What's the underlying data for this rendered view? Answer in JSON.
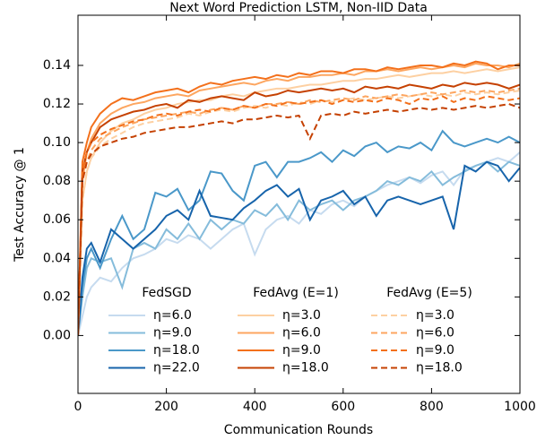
{
  "chart_data": {
    "type": "line",
    "title": "Next Word Prediction LSTM, Non-IID Data",
    "x_label": "Communication Rounds",
    "y_label": "Test Accuracy @ 1",
    "xlim": [
      0,
      1000
    ],
    "ylim": [
      -0.03,
      0.166
    ],
    "xticks": [
      0,
      200,
      400,
      600,
      800,
      1000
    ],
    "yticks": [
      {
        "value": 0,
        "label": "0.00"
      },
      0.02,
      0.04,
      0.06,
      0.08,
      {
        "value": 0.1,
        "label": "0.10"
      },
      0.12,
      0.14
    ],
    "x": [
      0,
      10,
      20,
      30,
      50,
      75,
      100,
      125,
      150,
      175,
      200,
      225,
      250,
      275,
      300,
      325,
      350,
      375,
      400,
      425,
      450,
      475,
      500,
      525,
      550,
      575,
      600,
      625,
      650,
      675,
      700,
      725,
      750,
      775,
      800,
      825,
      850,
      875,
      900,
      925,
      950,
      975,
      1000
    ],
    "series_groups": [
      {
        "name": "FedSGD",
        "dashed": false,
        "series": [
          {
            "name": "η=6.0",
            "color": "#c6dbef",
            "values": [
              0,
              0.01,
              0.02,
              0.025,
              0.03,
              0.028,
              0.035,
              0.04,
              0.042,
              0.045,
              0.05,
              0.048,
              0.052,
              0.05,
              0.045,
              0.05,
              0.055,
              0.058,
              0.042,
              0.055,
              0.06,
              0.062,
              0.058,
              0.065,
              0.063,
              0.068,
              0.07,
              0.067,
              0.072,
              0.075,
              0.078,
              0.08,
              0.082,
              0.079,
              0.083,
              0.085,
              0.078,
              0.086,
              0.088,
              0.09,
              0.092,
              0.09,
              0.095
            ]
          },
          {
            "name": "η=9.0",
            "color": "#85bcdb",
            "values": [
              0,
              0.02,
              0.035,
              0.04,
              0.038,
              0.04,
              0.025,
              0.045,
              0.048,
              0.045,
              0.055,
              0.05,
              0.058,
              0.05,
              0.06,
              0.055,
              0.06,
              0.058,
              0.065,
              0.062,
              0.068,
              0.06,
              0.07,
              0.065,
              0.068,
              0.07,
              0.065,
              0.07,
              0.072,
              0.075,
              0.08,
              0.078,
              0.082,
              0.08,
              0.085,
              0.078,
              0.082,
              0.085,
              0.088,
              0.09,
              0.085,
              0.09,
              0.088
            ]
          },
          {
            "name": "η=18.0",
            "color": "#4a98c9",
            "values": [
              0,
              0.025,
              0.04,
              0.045,
              0.035,
              0.05,
              0.062,
              0.05,
              0.055,
              0.074,
              0.072,
              0.076,
              0.065,
              0.07,
              0.085,
              0.084,
              0.075,
              0.07,
              0.088,
              0.09,
              0.082,
              0.09,
              0.09,
              0.092,
              0.095,
              0.09,
              0.096,
              0.093,
              0.098,
              0.1,
              0.095,
              0.098,
              0.097,
              0.1,
              0.096,
              0.106,
              0.1,
              0.098,
              0.1,
              0.102,
              0.1,
              0.103,
              0.1
            ]
          },
          {
            "name": "η=22.0",
            "color": "#1764ab",
            "values": [
              0,
              0.03,
              0.045,
              0.048,
              0.038,
              0.055,
              0.05,
              0.045,
              0.05,
              0.055,
              0.062,
              0.065,
              0.06,
              0.075,
              0.062,
              0.061,
              0.06,
              0.066,
              0.07,
              0.075,
              0.078,
              0.072,
              0.076,
              0.06,
              0.07,
              0.072,
              0.075,
              0.068,
              0.072,
              0.062,
              0.07,
              0.072,
              0.07,
              0.068,
              0.07,
              0.072,
              0.055,
              0.088,
              0.085,
              0.09,
              0.088,
              0.08,
              0.087
            ]
          }
        ]
      },
      {
        "name": "FedAvg (E=1)",
        "dashed": false,
        "series": [
          {
            "name": "η=3.0",
            "color": "#fdd0a2",
            "values": [
              0,
              0.07,
              0.085,
              0.092,
              0.1,
              0.106,
              0.11,
              0.112,
              0.115,
              0.117,
              0.118,
              0.12,
              0.121,
              0.122,
              0.122,
              0.124,
              0.125,
              0.124,
              0.126,
              0.127,
              0.128,
              0.128,
              0.129,
              0.13,
              0.13,
              0.131,
              0.132,
              0.132,
              0.133,
              0.133,
              0.134,
              0.135,
              0.134,
              0.135,
              0.136,
              0.136,
              0.137,
              0.136,
              0.137,
              0.138,
              0.137,
              0.138,
              0.139
            ]
          },
          {
            "name": "η=6.0",
            "color": "#fda660",
            "values": [
              0,
              0.08,
              0.095,
              0.102,
              0.11,
              0.115,
              0.118,
              0.12,
              0.121,
              0.123,
              0.124,
              0.125,
              0.124,
              0.127,
              0.128,
              0.129,
              0.13,
              0.131,
              0.13,
              0.132,
              0.133,
              0.132,
              0.134,
              0.134,
              0.135,
              0.135,
              0.136,
              0.135,
              0.137,
              0.137,
              0.138,
              0.137,
              0.138,
              0.139,
              0.138,
              0.139,
              0.14,
              0.139,
              0.141,
              0.14,
              0.14,
              0.139,
              0.141
            ]
          },
          {
            "name": "η=9.0",
            "color": "#f3701b",
            "values": [
              0,
              0.09,
              0.1,
              0.108,
              0.115,
              0.12,
              0.123,
              0.122,
              0.124,
              0.126,
              0.127,
              0.128,
              0.126,
              0.129,
              0.131,
              0.13,
              0.132,
              0.133,
              0.134,
              0.133,
              0.135,
              0.134,
              0.136,
              0.135,
              0.137,
              0.137,
              0.136,
              0.138,
              0.138,
              0.137,
              0.139,
              0.138,
              0.139,
              0.14,
              0.14,
              0.139,
              0.141,
              0.14,
              0.142,
              0.141,
              0.138,
              0.14,
              0.14
            ]
          },
          {
            "name": "η=18.0",
            "color": "#c54102",
            "values": [
              0,
              0.085,
              0.095,
              0.1,
              0.108,
              0.112,
              0.114,
              0.116,
              0.117,
              0.119,
              0.12,
              0.118,
              0.122,
              0.121,
              0.123,
              0.124,
              0.123,
              0.122,
              0.126,
              0.124,
              0.125,
              0.127,
              0.126,
              0.127,
              0.128,
              0.127,
              0.128,
              0.126,
              0.129,
              0.128,
              0.129,
              0.128,
              0.13,
              0.129,
              0.128,
              0.13,
              0.129,
              0.131,
              0.13,
              0.131,
              0.13,
              0.128,
              0.13
            ]
          }
        ]
      },
      {
        "name": "FedAvg (E=5)",
        "dashed": true,
        "series": [
          {
            "name": "η=3.0",
            "color": "#fdd0a2",
            "values": [
              0,
              0.07,
              0.085,
              0.092,
              0.098,
              0.102,
              0.105,
              0.108,
              0.11,
              0.111,
              0.112,
              0.113,
              0.115,
              0.114,
              0.116,
              0.117,
              0.116,
              0.118,
              0.119,
              0.118,
              0.12,
              0.119,
              0.121,
              0.12,
              0.122,
              0.121,
              0.122,
              0.123,
              0.122,
              0.123,
              0.124,
              0.123,
              0.124,
              0.125,
              0.124,
              0.125,
              0.124,
              0.126,
              0.125,
              0.126,
              0.125,
              0.126,
              0.127
            ]
          },
          {
            "name": "η=6.0",
            "color": "#fda660",
            "values": [
              0,
              0.08,
              0.09,
              0.096,
              0.102,
              0.105,
              0.108,
              0.11,
              0.112,
              0.113,
              0.114,
              0.115,
              0.116,
              0.115,
              0.117,
              0.118,
              0.117,
              0.119,
              0.118,
              0.12,
              0.12,
              0.121,
              0.12,
              0.122,
              0.121,
              0.122,
              0.123,
              0.122,
              0.124,
              0.123,
              0.124,
              0.125,
              0.124,
              0.125,
              0.126,
              0.125,
              0.126,
              0.127,
              0.126,
              0.127,
              0.126,
              0.127,
              0.128
            ]
          },
          {
            "name": "η=9.0",
            "color": "#f3701b",
            "values": [
              0,
              0.085,
              0.095,
              0.1,
              0.104,
              0.107,
              0.109,
              0.111,
              0.112,
              0.114,
              0.115,
              0.114,
              0.116,
              0.117,
              0.116,
              0.118,
              0.117,
              0.119,
              0.118,
              0.12,
              0.119,
              0.121,
              0.12,
              0.121,
              0.122,
              0.12,
              0.122,
              0.121,
              0.122,
              0.121,
              0.123,
              0.122,
              0.12,
              0.123,
              0.122,
              0.124,
              0.121,
              0.123,
              0.122,
              0.124,
              0.123,
              0.122,
              0.123
            ]
          },
          {
            "name": "η=18.0",
            "color": "#c54102",
            "values": [
              0,
              0.08,
              0.09,
              0.094,
              0.098,
              0.1,
              0.102,
              0.103,
              0.105,
              0.106,
              0.107,
              0.108,
              0.108,
              0.109,
              0.11,
              0.111,
              0.11,
              0.112,
              0.112,
              0.113,
              0.114,
              0.113,
              0.114,
              0.102,
              0.114,
              0.115,
              0.114,
              0.116,
              0.115,
              0.116,
              0.117,
              0.116,
              0.117,
              0.118,
              0.117,
              0.118,
              0.117,
              0.118,
              0.119,
              0.118,
              0.119,
              0.12,
              0.118
            ]
          }
        ]
      }
    ]
  }
}
